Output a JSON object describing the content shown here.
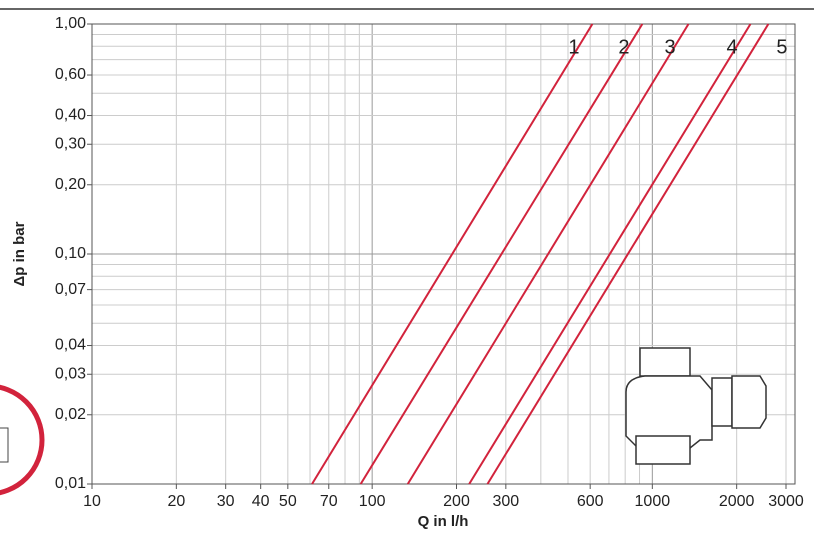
{
  "chart_data": {
    "type": "line",
    "x_label": "Q in l/h",
    "y_label": "Δp in bar",
    "log_x": true,
    "log_y": true,
    "grid": true,
    "xlim": [
      10,
      3000
    ],
    "ylim": [
      0.01,
      1
    ],
    "xticks": [
      10,
      20,
      30,
      40,
      50,
      70,
      100,
      200,
      300,
      600,
      1000,
      2000,
      3000
    ],
    "yticks": [
      {
        "value": 0.01,
        "label": "0,01"
      },
      {
        "value": 0.02,
        "label": "0,02"
      },
      {
        "value": 0.03,
        "label": "0,03"
      },
      {
        "value": 0.04,
        "label": "0,04"
      },
      {
        "value": 0.07,
        "label": "0,07"
      },
      {
        "value": 0.1,
        "label": "0,10"
      },
      {
        "value": 0.2,
        "label": "0,20"
      },
      {
        "value": 0.3,
        "label": "0,30"
      },
      {
        "value": 0.4,
        "label": "0,40"
      },
      {
        "value": 0.6,
        "label": "0,60"
      },
      {
        "value": 1,
        "label": "1,00"
      }
    ],
    "xgrid": [
      10,
      20,
      30,
      40,
      50,
      60,
      70,
      80,
      90,
      100,
      200,
      300,
      400,
      500,
      600,
      700,
      800,
      900,
      1000,
      2000,
      3000
    ],
    "ygrid": [
      0.01,
      0.02,
      0.03,
      0.04,
      0.05,
      0.06,
      0.07,
      0.08,
      0.09,
      0.1,
      0.2,
      0.3,
      0.4,
      0.5,
      0.6,
      0.7,
      0.8,
      0.9,
      1
    ],
    "series": [
      {
        "name": "1",
        "color": "#d2233c",
        "x": [
          61,
          611
        ],
        "values": [
          0.01,
          1
        ]
      },
      {
        "name": "2",
        "color": "#d2233c",
        "x": [
          91,
          921
        ],
        "values": [
          0.01,
          1
        ]
      },
      {
        "name": "3",
        "color": "#d2233c",
        "x": [
          134,
          1346
        ],
        "values": [
          0.01,
          1
        ]
      },
      {
        "name": "4",
        "color": "#d2233c",
        "x": [
          222,
          2240
        ],
        "values": [
          0.01,
          1
        ]
      },
      {
        "name": "5",
        "color": "#d2233c",
        "x": [
          258,
          2595
        ],
        "values": [
          0.01,
          1
        ]
      }
    ]
  }
}
